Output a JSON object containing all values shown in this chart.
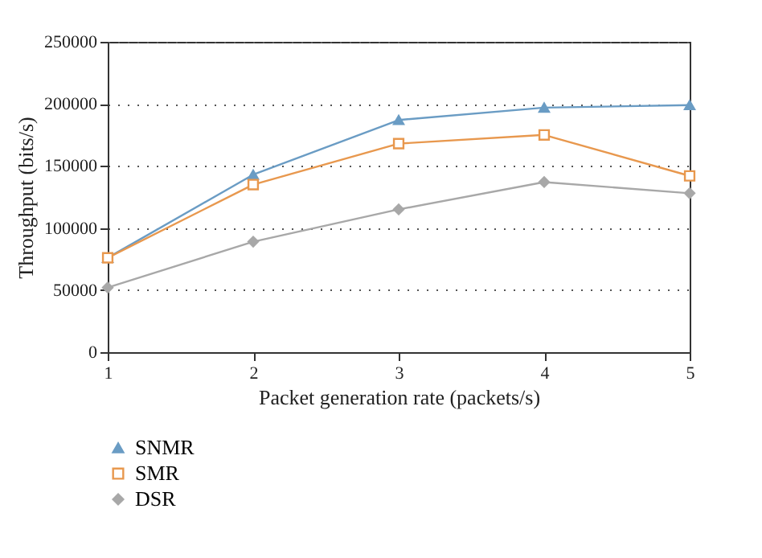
{
  "chart_data": {
    "type": "line",
    "xlabel": "Packet generation rate (packets/s)",
    "ylabel": "Throughput (bits/s)",
    "x": [
      1,
      2,
      3,
      4,
      5
    ],
    "series": [
      {
        "name": "SNMR",
        "color": "#6a9cc4",
        "marker": "triangle",
        "values": [
          76000,
          143000,
          187000,
          197000,
          199000
        ]
      },
      {
        "name": "SMR",
        "color": "#e8984e",
        "marker": "square",
        "values": [
          76000,
          135000,
          168000,
          175000,
          142000
        ]
      },
      {
        "name": "DSR",
        "color": "#a8a8a8",
        "marker": "diamond",
        "values": [
          52000,
          89000,
          115000,
          137000,
          128000
        ]
      }
    ],
    "xlim": [
      1,
      5
    ],
    "xticks": [
      1,
      2,
      3,
      4,
      5
    ],
    "ylim": [
      0,
      250000
    ],
    "yticks": [
      0,
      50000,
      100000,
      150000,
      200000,
      250000
    ],
    "grid": "y",
    "legend": "bottom",
    "line_style": "solid"
  }
}
